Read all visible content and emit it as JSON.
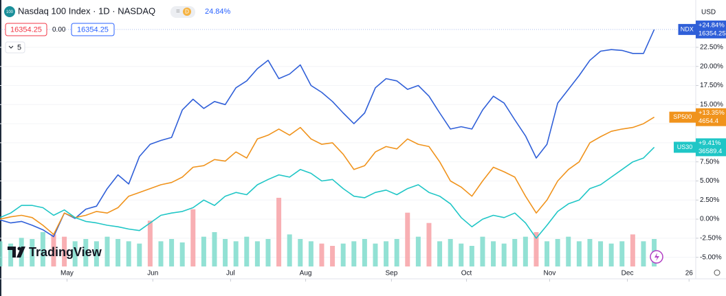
{
  "header": {
    "logo_text": "100",
    "title": "Nasdaq 100 Index · 1D · NASDAQ",
    "interval_badge": "D",
    "change": "24.84%",
    "bid": "16354.25",
    "spread": "0.00",
    "ask": "16354.25",
    "indicators_count": "5",
    "currency": "USD",
    "brand": "TradingView"
  },
  "chart_data": {
    "type": "line",
    "x": [
      0,
      4,
      8,
      12,
      16,
      20,
      24,
      28,
      32,
      36,
      40,
      44,
      48,
      52,
      56,
      60,
      64,
      68,
      72,
      76,
      80,
      84,
      88,
      92,
      96,
      100,
      104,
      108,
      112,
      116,
      120,
      124,
      128,
      132,
      136,
      140,
      144,
      148,
      152,
      156,
      160,
      164,
      168,
      172,
      176,
      180,
      184,
      188,
      192,
      196,
      200,
      204,
      208,
      212,
      216,
      220,
      224,
      228,
      232,
      236,
      240,
      244
    ],
    "xlim": [
      0,
      259.5
    ],
    "xticks": [
      {
        "value": 25,
        "label": "May"
      },
      {
        "value": 57,
        "label": "Jun"
      },
      {
        "value": 86,
        "label": "Jul"
      },
      {
        "value": 114,
        "label": "Aug"
      },
      {
        "value": 146,
        "label": "Sep"
      },
      {
        "value": 174,
        "label": "Oct"
      },
      {
        "value": 205,
        "label": "Nov"
      },
      {
        "value": 234,
        "label": "Dec"
      },
      {
        "value": 257,
        "label": "26"
      }
    ],
    "ylim": [
      -6.2,
      25.1
    ],
    "yticks": [
      {
        "value": -5,
        "label": "-5.00%"
      },
      {
        "value": -2.5,
        "label": "-2.50%"
      },
      {
        "value": 0,
        "label": "0.00%"
      },
      {
        "value": 2.5,
        "label": "2.50%"
      },
      {
        "value": 5,
        "label": "5.00%"
      },
      {
        "value": 7.5,
        "label": "7.50%"
      },
      {
        "value": 10,
        "label": "10.00%"
      },
      {
        "value": 12.5,
        "label": "12.50%"
      },
      {
        "value": 15,
        "label": "15.00%"
      },
      {
        "value": 17.5,
        "label": "17.50%"
      },
      {
        "value": 20,
        "label": "20.00%"
      },
      {
        "value": 22.5,
        "label": "22.50%"
      }
    ],
    "series": [
      {
        "name": "NDX",
        "color": "#2f5fd8",
        "badge": [
          "+24.84%",
          "16354.25"
        ],
        "values": [
          -0.1,
          -0.5,
          -0.3,
          -0.8,
          -1.4,
          -2.3,
          0.8,
          0.1,
          1.3,
          1.7,
          4.0,
          5.8,
          4.6,
          8.2,
          9.8,
          10.3,
          10.7,
          14.3,
          15.7,
          14.5,
          15.4,
          15.0,
          17.2,
          18.1,
          19.7,
          20.8,
          18.4,
          19.0,
          20.2,
          17.5,
          16.6,
          15.4,
          13.9,
          12.5,
          13.9,
          17.2,
          18.4,
          18.1,
          17.0,
          17.5,
          16.1,
          13.9,
          11.8,
          12.1,
          11.8,
          14.3,
          16.1,
          15.2,
          13.0,
          10.9,
          8.0,
          9.8,
          15.2,
          17.0,
          18.8,
          20.8,
          22.0,
          22.2,
          22.1,
          21.7,
          21.7,
          24.84
        ]
      },
      {
        "name": "SP500",
        "color": "#f0931c",
        "badge": [
          "+13.35%",
          "4654.4"
        ],
        "values": [
          0.0,
          0.3,
          0.5,
          0.2,
          -0.8,
          -2.0,
          0.8,
          0.2,
          0.5,
          1.0,
          0.8,
          1.5,
          3.0,
          3.5,
          4.0,
          4.5,
          4.8,
          5.5,
          6.8,
          7.0,
          7.8,
          7.6,
          8.8,
          8.0,
          10.5,
          11.0,
          11.8,
          11.0,
          12.0,
          10.5,
          9.8,
          10.0,
          8.5,
          6.5,
          7.0,
          8.8,
          9.5,
          9.2,
          10.5,
          9.8,
          9.5,
          7.5,
          5.0,
          4.2,
          3.0,
          5.0,
          6.8,
          6.2,
          5.5,
          3.0,
          0.8,
          2.5,
          5.0,
          6.5,
          7.5,
          10.0,
          10.8,
          11.5,
          11.8,
          12.0,
          12.5,
          13.35
        ]
      },
      {
        "name": "US30",
        "color": "#1fc6c6",
        "badge": [
          "+9.41%",
          "36589.4"
        ],
        "values": [
          0.2,
          0.8,
          1.8,
          1.8,
          1.5,
          0.5,
          1.2,
          0.2,
          -0.3,
          -0.5,
          -0.8,
          -1.0,
          -1.3,
          -1.5,
          -0.5,
          0.5,
          0.8,
          1.0,
          1.5,
          2.5,
          1.8,
          3.0,
          3.5,
          3.2,
          4.5,
          5.2,
          5.8,
          5.5,
          6.5,
          6.0,
          5.0,
          5.2,
          4.0,
          3.0,
          2.8,
          3.5,
          3.8,
          3.2,
          4.0,
          4.5,
          3.5,
          3.0,
          2.0,
          0.2,
          -1.0,
          0.0,
          0.5,
          0.2,
          0.8,
          -0.5,
          -2.5,
          -0.8,
          1.0,
          2.0,
          2.5,
          4.0,
          4.5,
          5.5,
          6.5,
          7.5,
          8.0,
          9.41
        ]
      }
    ],
    "volume": {
      "ylim": [
        0,
        60
      ],
      "values": [
        22,
        20,
        25,
        24,
        30,
        28,
        26,
        22,
        24,
        22,
        26,
        24,
        22,
        20,
        40,
        22,
        24,
        21,
        50,
        26,
        30,
        24,
        22,
        26,
        22,
        24,
        60,
        28,
        24,
        22,
        20,
        18,
        20,
        22,
        24,
        20,
        22,
        24,
        47,
        26,
        38,
        22,
        24,
        20,
        18,
        26,
        22,
        20,
        24,
        26,
        30,
        22,
        24,
        26,
        22,
        24,
        22,
        20,
        22,
        28,
        22,
        24
      ],
      "colors": [
        "#7fdccc",
        "#7fdccc",
        "#7fdccc",
        "#7fdccc",
        "#7fdccc",
        "#f7a1a6",
        "#f7a1a6",
        "#7fdccc",
        "#7fdccc",
        "#7fdccc",
        "#7fdccc",
        "#7fdccc",
        "#7fdccc",
        "#7fdccc",
        "#f7a1a6",
        "#7fdccc",
        "#7fdccc",
        "#7fdccc",
        "#f7a1a6",
        "#7fdccc",
        "#7fdccc",
        "#7fdccc",
        "#7fdccc",
        "#7fdccc",
        "#7fdccc",
        "#7fdccc",
        "#f7a1a6",
        "#7fdccc",
        "#7fdccc",
        "#7fdccc",
        "#f7a1a6",
        "#f7a1a6",
        "#7fdccc",
        "#7fdccc",
        "#7fdccc",
        "#7fdccc",
        "#7fdccc",
        "#7fdccc",
        "#f7a1a6",
        "#7fdccc",
        "#f7a1a6",
        "#7fdccc",
        "#7fdccc",
        "#7fdccc",
        "#7fdccc",
        "#7fdccc",
        "#7fdccc",
        "#7fdccc",
        "#7fdccc",
        "#7fdccc",
        "#f7a1a6",
        "#7fdccc",
        "#7fdccc",
        "#7fdccc",
        "#7fdccc",
        "#7fdccc",
        "#7fdccc",
        "#7fdccc",
        "#7fdccc",
        "#f7a1a6",
        "#7fdccc",
        "#7fdccc"
      ]
    }
  }
}
